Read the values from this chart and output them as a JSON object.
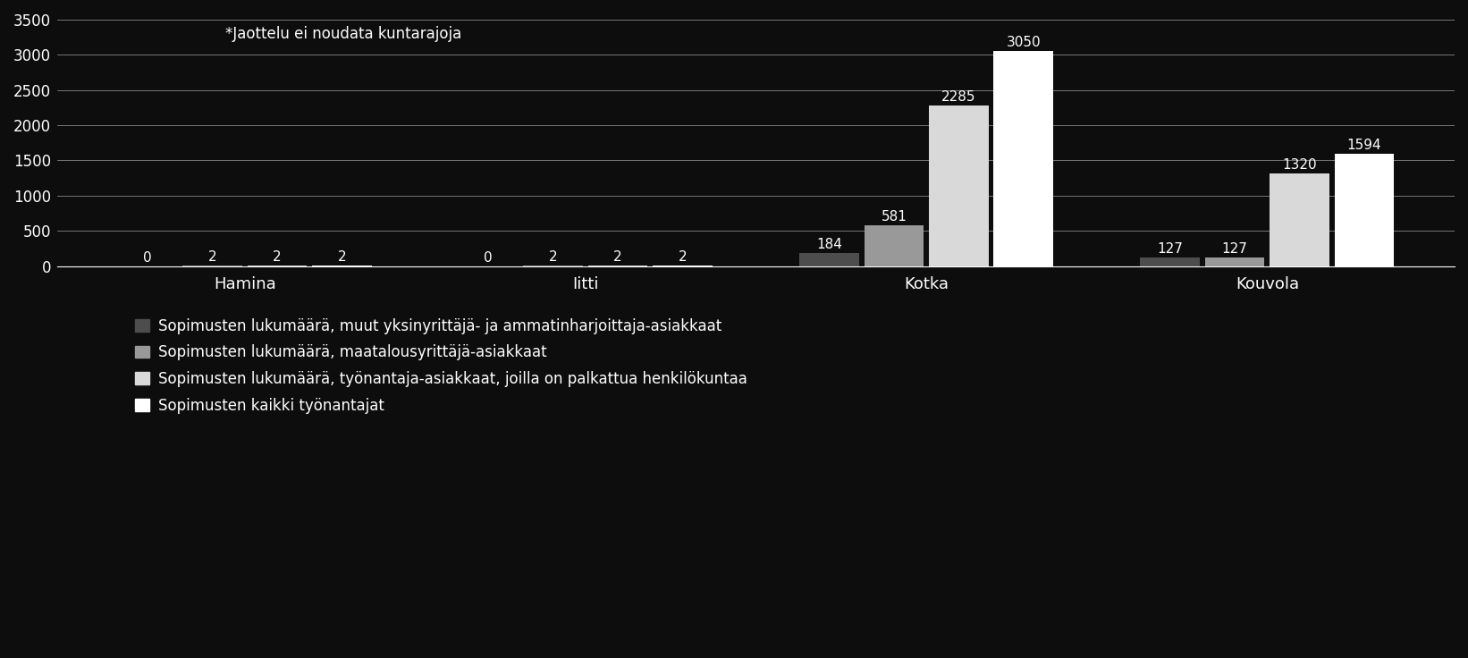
{
  "categories": [
    "Hamina",
    "Iitti",
    "Kotka",
    "Kouvola"
  ],
  "series": [
    {
      "label": "Sopimusten lukumäärä, muut yksinyrittäjä- ja ammatinharjoittaja-asiakkaat",
      "values": [
        0,
        0,
        184,
        127
      ],
      "color": "#4d4d4d"
    },
    {
      "label": "Sopimusten lukumäärä, maatalousyrittäjä-asiakkaat",
      "values": [
        2,
        2,
        581,
        127
      ],
      "color": "#999999"
    },
    {
      "label": "Sopimusten lukumäärä, työnantaja-asiakkaat, joilla on palkattua henkilökuntaa",
      "values": [
        2,
        2,
        2285,
        1320
      ],
      "color": "#d9d9d9"
    },
    {
      "label": "Sopimusten kaikki työnantajat",
      "values": [
        2,
        2,
        3050,
        1594
      ],
      "color": "#ffffff"
    }
  ],
  "ylim": [
    0,
    3500
  ],
  "yticks": [
    0,
    500,
    1000,
    1500,
    2000,
    2500,
    3000,
    3500
  ],
  "annotation_note": "*Jaottelu ei noudata kuntarajoja",
  "background_color": "#0d0d0d",
  "text_color": "#ffffff",
  "bar_width": 0.19,
  "legend_labels": [
    "Sopimusten lukumäärä, muut yksinyrittäjä- ja ammatinharjoittaja-asiakkaat",
    "Sopimusten lukumäärä, maatalousyrittäjä-asiakkaat",
    "Sopimusten lukumäärä, työnantaja-asiakkaat, joilla on palkattua henkilökuntaa",
    "Sopimusten kaikki työnantajat"
  ]
}
